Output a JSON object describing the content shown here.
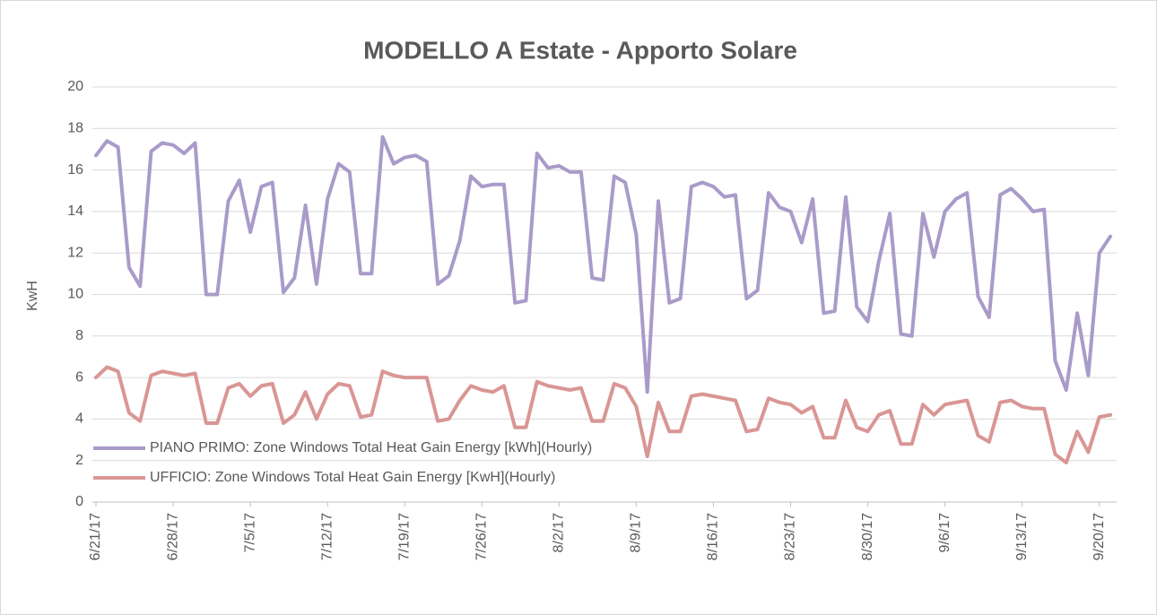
{
  "chart_data": {
    "type": "line",
    "title": "MODELLO A Estate - Apporto Solare",
    "y_label": "KwH",
    "categories": [
      "6/21/17",
      null,
      null,
      null,
      null,
      null,
      null,
      "6/28/17",
      null,
      null,
      null,
      null,
      null,
      null,
      "7/5/17",
      null,
      null,
      null,
      null,
      null,
      null,
      "7/12/17",
      null,
      null,
      null,
      null,
      null,
      null,
      "7/19/17",
      null,
      null,
      null,
      null,
      null,
      null,
      "7/26/17",
      null,
      null,
      null,
      null,
      null,
      null,
      "8/2/17",
      null,
      null,
      null,
      null,
      null,
      null,
      "8/9/17",
      null,
      null,
      null,
      null,
      null,
      null,
      "8/16/17",
      null,
      null,
      null,
      null,
      null,
      null,
      "8/23/17",
      null,
      null,
      null,
      null,
      null,
      null,
      "8/30/17",
      null,
      null,
      null,
      null,
      null,
      null,
      "9/6/17",
      null,
      null,
      null,
      null,
      null,
      null,
      "9/13/17",
      null,
      null,
      null,
      null,
      null,
      null,
      "9/20/17",
      null
    ],
    "series": [
      {
        "name": "PIANO PRIMO: Zone Windows Total Heat Gain Energy [kWh](Hourly)",
        "color": "#a99bc9",
        "values": [
          16.7,
          17.4,
          17.1,
          11.3,
          10.4,
          16.9,
          17.3,
          17.2,
          16.8,
          17.3,
          10.0,
          10.0,
          14.5,
          15.5,
          13.0,
          15.2,
          15.4,
          10.1,
          10.8,
          14.3,
          10.5,
          14.6,
          16.3,
          15.9,
          11.0,
          11.0,
          17.6,
          16.3,
          16.6,
          16.7,
          16.4,
          10.5,
          10.9,
          12.6,
          15.7,
          15.2,
          15.3,
          15.3,
          9.6,
          9.7,
          16.8,
          16.1,
          16.2,
          15.9,
          15.9,
          10.8,
          10.7,
          15.7,
          15.4,
          12.9,
          5.3,
          14.5,
          9.6,
          9.8,
          15.2,
          15.4,
          15.2,
          14.7,
          14.8,
          9.8,
          10.2,
          14.9,
          14.2,
          14.0,
          12.5,
          14.6,
          9.1,
          9.2,
          14.7,
          9.4,
          8.7,
          11.6,
          13.9,
          8.1,
          8.0,
          13.9,
          11.8,
          14.0,
          14.6,
          14.9,
          9.9,
          8.9,
          14.8,
          15.1,
          14.6,
          14.0,
          14.1,
          6.8,
          5.4,
          9.1,
          6.1,
          12.0,
          12.8
        ]
      },
      {
        "name": "UFFICIO: Zone Windows Total Heat Gain Energy [KwH](Hourly)",
        "color": "#d99694",
        "values": [
          6.0,
          6.5,
          6.3,
          4.3,
          3.9,
          6.1,
          6.3,
          6.2,
          6.1,
          6.2,
          3.8,
          3.8,
          5.5,
          5.7,
          5.1,
          5.6,
          5.7,
          3.8,
          4.2,
          5.3,
          4.0,
          5.2,
          5.7,
          5.6,
          4.1,
          4.2,
          6.3,
          6.1,
          6.0,
          6.0,
          6.0,
          3.9,
          4.0,
          4.9,
          5.6,
          5.4,
          5.3,
          5.6,
          3.6,
          3.6,
          5.8,
          5.6,
          5.5,
          5.4,
          5.5,
          3.9,
          3.9,
          5.7,
          5.5,
          4.6,
          2.2,
          4.8,
          3.4,
          3.4,
          5.1,
          5.2,
          5.1,
          5.0,
          4.9,
          3.4,
          3.5,
          5.0,
          4.8,
          4.7,
          4.3,
          4.6,
          3.1,
          3.1,
          4.9,
          3.6,
          3.4,
          4.2,
          4.4,
          2.8,
          2.8,
          4.7,
          4.2,
          4.7,
          4.8,
          4.9,
          3.2,
          2.9,
          4.8,
          4.9,
          4.6,
          4.5,
          4.5,
          2.3,
          1.9,
          3.4,
          2.4,
          4.1,
          4.2
        ]
      }
    ],
    "ylim": [
      0,
      20
    ],
    "yticks": [
      0,
      2,
      4,
      6,
      8,
      10,
      12,
      14,
      16,
      18,
      20
    ],
    "grid": true,
    "legend": "lower left"
  }
}
